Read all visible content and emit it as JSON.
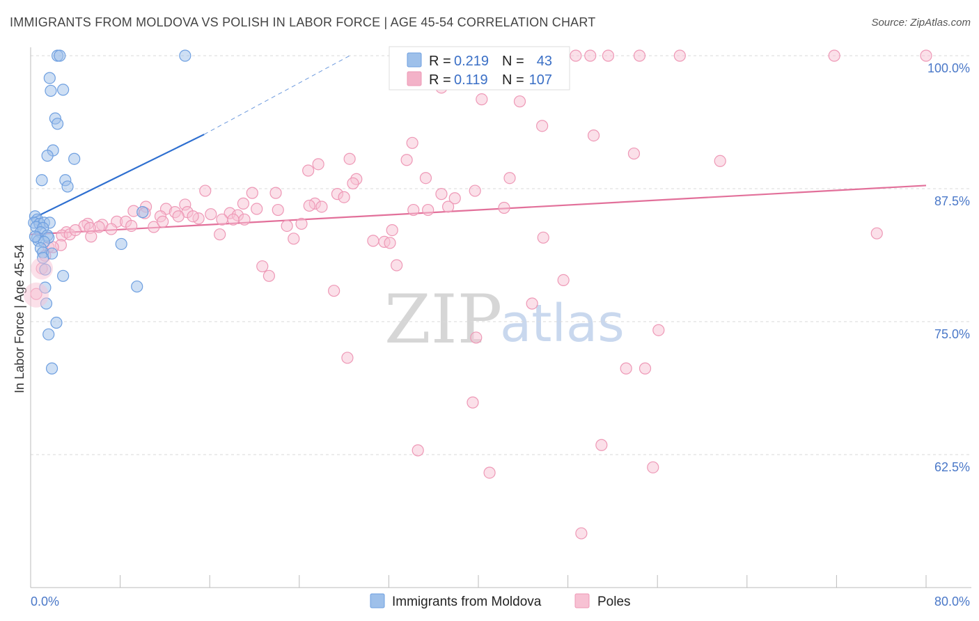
{
  "header": {
    "title": "IMMIGRANTS FROM MOLDOVA VS POLISH IN LABOR FORCE | AGE 45-54 CORRELATION CHART",
    "source": "Source: ZipAtlas.com"
  },
  "watermark": {
    "zip": "ZIP",
    "atlas": "atlas"
  },
  "chart_data": {
    "type": "scatter",
    "title": "IMMIGRANTS FROM MOLDOVA VS POLISH IN LABOR FORCE | AGE 45-54 CORRELATION CHART",
    "xlabel": "",
    "ylabel": "In Labor Force | Age 45-54",
    "xlim": [
      0,
      80
    ],
    "ylim": [
      50,
      100
    ],
    "x_tick_labels": {
      "min": "0.0%",
      "max": "80.0%"
    },
    "y_ticks": [
      {
        "value": 100,
        "label": "100.0%"
      },
      {
        "value": 87.5,
        "label": "87.5%"
      },
      {
        "value": 75,
        "label": "75.0%"
      },
      {
        "value": 62.5,
        "label": "62.5%"
      }
    ],
    "legend": {
      "position": "top-center",
      "r_label": "R =",
      "n_label": "N =",
      "entries": [
        {
          "r": "0.219",
          "n": "43",
          "color": "#9ec0ea"
        },
        {
          "r": "0.119",
          "n": "107",
          "color": "#f3b2c8"
        }
      ]
    },
    "series": [
      {
        "name": "Immigrants from Moldova",
        "color": "#9ec0ea",
        "stroke": "#6e9fe0",
        "trend_color": "#2e6fd0",
        "trend": {
          "x0": 0,
          "y0": 84.6,
          "x1": 15.5,
          "y1": 92.6,
          "dash_x1": 28.5,
          "dash_y1": 100
        },
        "points": [
          [
            2.4,
            100
          ],
          [
            2.6,
            100
          ],
          [
            13.8,
            100
          ],
          [
            1.7,
            97.9
          ],
          [
            1.8,
            96.7
          ],
          [
            2.9,
            96.8
          ],
          [
            2.2,
            94.1
          ],
          [
            2.4,
            93.6
          ],
          [
            2.0,
            91.1
          ],
          [
            1.5,
            90.6
          ],
          [
            3.9,
            90.3
          ],
          [
            1.0,
            88.3
          ],
          [
            3.1,
            88.3
          ],
          [
            3.3,
            87.7
          ],
          [
            0.4,
            84.9
          ],
          [
            0.6,
            84.6
          ],
          [
            0.3,
            84.3
          ],
          [
            0.8,
            84.2
          ],
          [
            1.2,
            84.3
          ],
          [
            1.7,
            84.3
          ],
          [
            0.5,
            83.9
          ],
          [
            1.1,
            83.8
          ],
          [
            0.9,
            83.4
          ],
          [
            1.5,
            83.1
          ],
          [
            0.6,
            82.9
          ],
          [
            1.6,
            82.9
          ],
          [
            0.7,
            82.6
          ],
          [
            1.2,
            82.5
          ],
          [
            8.1,
            82.3
          ],
          [
            0.9,
            81.9
          ],
          [
            1.1,
            81.5
          ],
          [
            1.9,
            81.4
          ],
          [
            1.1,
            81.0
          ],
          [
            1.3,
            79.9
          ],
          [
            2.9,
            79.3
          ],
          [
            9.5,
            78.3
          ],
          [
            1.3,
            78.2
          ],
          [
            1.4,
            76.7
          ],
          [
            2.3,
            74.9
          ],
          [
            1.6,
            73.8
          ],
          [
            1.9,
            70.6
          ],
          [
            10.0,
            85.3
          ],
          [
            0.4,
            83.0
          ]
        ]
      },
      {
        "name": "Poles",
        "color": "#f7c1d3",
        "stroke": "#ee98b6",
        "trend_color": "#e2709a",
        "trend": {
          "x0": 0,
          "y0": 83.2,
          "x1": 80,
          "y1": 87.8
        },
        "points": [
          [
            48.7,
            100
          ],
          [
            50.0,
            100
          ],
          [
            51.6,
            100
          ],
          [
            54.4,
            100
          ],
          [
            58.0,
            100
          ],
          [
            71.8,
            100
          ],
          [
            80.0,
            100
          ],
          [
            42.6,
            99.1
          ],
          [
            36.7,
            97.0
          ],
          [
            40.3,
            95.9
          ],
          [
            43.7,
            95.7
          ],
          [
            45.7,
            93.4
          ],
          [
            50.3,
            92.5
          ],
          [
            34.1,
            91.8
          ],
          [
            53.9,
            90.8
          ],
          [
            61.6,
            90.1
          ],
          [
            28.5,
            90.3
          ],
          [
            33.6,
            90.2
          ],
          [
            25.7,
            89.8
          ],
          [
            24.8,
            89.2
          ],
          [
            42.8,
            88.5
          ],
          [
            35.3,
            88.5
          ],
          [
            29.1,
            88.4
          ],
          [
            28.8,
            88.0
          ],
          [
            15.6,
            87.3
          ],
          [
            39.7,
            87.3
          ],
          [
            19.8,
            87.1
          ],
          [
            21.9,
            87.1
          ],
          [
            27.4,
            87.0
          ],
          [
            36.7,
            87.0
          ],
          [
            28.0,
            86.7
          ],
          [
            37.9,
            86.6
          ],
          [
            19.0,
            86.1
          ],
          [
            25.4,
            86.1
          ],
          [
            13.8,
            86.0
          ],
          [
            26.0,
            85.8
          ],
          [
            10.3,
            85.8
          ],
          [
            37.3,
            85.8
          ],
          [
            42.3,
            85.7
          ],
          [
            12.1,
            85.6
          ],
          [
            20.2,
            85.6
          ],
          [
            22.1,
            85.5
          ],
          [
            34.2,
            85.5
          ],
          [
            35.5,
            85.5
          ],
          [
            9.2,
            85.4
          ],
          [
            12.9,
            85.3
          ],
          [
            14.0,
            85.3
          ],
          [
            10.2,
            85.2
          ],
          [
            17.8,
            85.2
          ],
          [
            16.1,
            85.1
          ],
          [
            18.5,
            85.0
          ],
          [
            11.6,
            84.9
          ],
          [
            13.2,
            84.9
          ],
          [
            15.0,
            84.7
          ],
          [
            17.1,
            84.6
          ],
          [
            18.1,
            84.6
          ],
          [
            19.1,
            84.6
          ],
          [
            7.7,
            84.4
          ],
          [
            8.5,
            84.4
          ],
          [
            5.1,
            84.2
          ],
          [
            24.2,
            84.2
          ],
          [
            6.4,
            84.1
          ],
          [
            9.0,
            84.0
          ],
          [
            4.8,
            84.0
          ],
          [
            22.9,
            84.0
          ],
          [
            11.0,
            83.9
          ],
          [
            6.1,
            83.9
          ],
          [
            5.3,
            83.8
          ],
          [
            7.2,
            83.7
          ],
          [
            32.3,
            83.6
          ],
          [
            3.2,
            83.4
          ],
          [
            16.9,
            83.2
          ],
          [
            2.8,
            83.1
          ],
          [
            5.4,
            83.0
          ],
          [
            75.6,
            83.3
          ],
          [
            23.5,
            82.8
          ],
          [
            45.8,
            82.9
          ],
          [
            30.6,
            82.6
          ],
          [
            31.6,
            82.5
          ],
          [
            32.1,
            82.4
          ],
          [
            1.6,
            82.0
          ],
          [
            2.7,
            82.2
          ],
          [
            20.7,
            80.2
          ],
          [
            32.7,
            80.3
          ],
          [
            21.3,
            79.3
          ],
          [
            47.6,
            78.9
          ],
          [
            1.0,
            80.0
          ],
          [
            27.1,
            77.9
          ],
          [
            44.8,
            76.7
          ],
          [
            0.5,
            77.6
          ],
          [
            56.1,
            74.2
          ],
          [
            39.8,
            73.5
          ],
          [
            28.3,
            71.6
          ],
          [
            53.2,
            70.6
          ],
          [
            54.9,
            70.6
          ],
          [
            39.5,
            67.4
          ],
          [
            51.0,
            63.4
          ],
          [
            34.6,
            62.9
          ],
          [
            55.6,
            61.3
          ],
          [
            41.0,
            60.8
          ],
          [
            49.2,
            55.1
          ],
          [
            1.3,
            81.2
          ],
          [
            3.5,
            83.2
          ],
          [
            2.0,
            82.0
          ],
          [
            4.0,
            83.6
          ],
          [
            14.5,
            84.9
          ],
          [
            24.9,
            85.9
          ],
          [
            11.8,
            84.4
          ]
        ]
      }
    ]
  },
  "bottom_legend": {
    "items": [
      {
        "label": "Immigrants from Moldova",
        "color": "#9ec0ea"
      },
      {
        "label": "Poles",
        "color": "#f7c1d3"
      }
    ]
  }
}
